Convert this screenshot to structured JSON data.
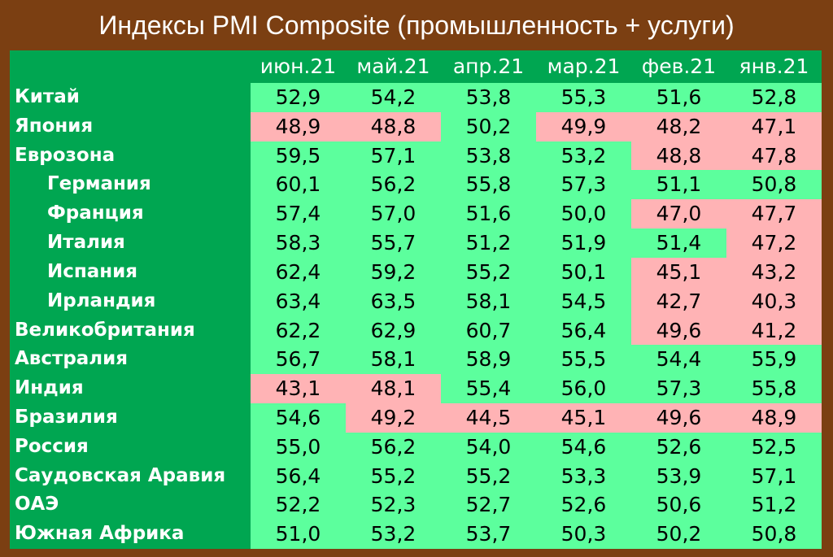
{
  "header": {
    "title": "Индексы PMI Composite (промышленность + услуги)"
  },
  "table": {
    "columns": [
      "июн.21",
      "май.21",
      "апр.21",
      "мар.21",
      "фев.21",
      "янв.21"
    ],
    "highlight_below": 50,
    "colors": {
      "normal": "#5cff9d",
      "low": "#ffb3b5",
      "side": "#00a651"
    },
    "rows": [
      {
        "name": "Китай",
        "indent": false,
        "values": [
          "52,9",
          "54,2",
          "53,8",
          "55,3",
          "51,6",
          "52,8"
        ]
      },
      {
        "name": "Япония",
        "indent": false,
        "values": [
          "48,9",
          "48,8",
          "50,2",
          "49,9",
          "48,2",
          "47,1"
        ]
      },
      {
        "name": "Еврозона",
        "indent": false,
        "values": [
          "59,5",
          "57,1",
          "53,8",
          "53,2",
          "48,8",
          "47,8"
        ]
      },
      {
        "name": "Германия",
        "indent": true,
        "values": [
          "60,1",
          "56,2",
          "55,8",
          "57,3",
          "51,1",
          "50,8"
        ]
      },
      {
        "name": "Франция",
        "indent": true,
        "values": [
          "57,4",
          "57,0",
          "51,6",
          "50,0",
          "47,0",
          "47,7"
        ]
      },
      {
        "name": "Италия",
        "indent": true,
        "values": [
          "58,3",
          "55,7",
          "51,2",
          "51,9",
          "51,4",
          "47,2"
        ]
      },
      {
        "name": "Испания",
        "indent": true,
        "values": [
          "62,4",
          "59,2",
          "55,2",
          "50,1",
          "45,1",
          "43,2"
        ]
      },
      {
        "name": "Ирландия",
        "indent": true,
        "values": [
          "63,4",
          "63,5",
          "58,1",
          "54,5",
          "42,7",
          "40,3"
        ]
      },
      {
        "name": "Великобритания",
        "indent": false,
        "values": [
          "62,2",
          "62,9",
          "60,7",
          "56,4",
          "49,6",
          "41,2"
        ]
      },
      {
        "name": "Австралия",
        "indent": false,
        "values": [
          "56,7",
          "58,1",
          "58,9",
          "55,5",
          "54,4",
          "55,9"
        ]
      },
      {
        "name": "Индия",
        "indent": false,
        "values": [
          "43,1",
          "48,1",
          "55,4",
          "56,0",
          "57,3",
          "55,8"
        ]
      },
      {
        "name": "Бразилия",
        "indent": false,
        "values": [
          "54,6",
          "49,2",
          "44,5",
          "45,1",
          "49,6",
          "48,9"
        ]
      },
      {
        "name": "Россия",
        "indent": false,
        "values": [
          "55,0",
          "56,2",
          "54,0",
          "54,6",
          "52,6",
          "52,5"
        ]
      },
      {
        "name": "Саудовская Аравия",
        "indent": false,
        "values": [
          "56,4",
          "55,2",
          "55,2",
          "53,3",
          "53,9",
          "57,1"
        ]
      },
      {
        "name": "ОАЭ",
        "indent": false,
        "values": [
          "52,2",
          "52,3",
          "52,7",
          "52,6",
          "50,6",
          "51,2"
        ]
      },
      {
        "name": "Южная Африка",
        "indent": false,
        "values": [
          "51,0",
          "53,2",
          "53,7",
          "50,3",
          "50,2",
          "50,8"
        ]
      }
    ]
  }
}
